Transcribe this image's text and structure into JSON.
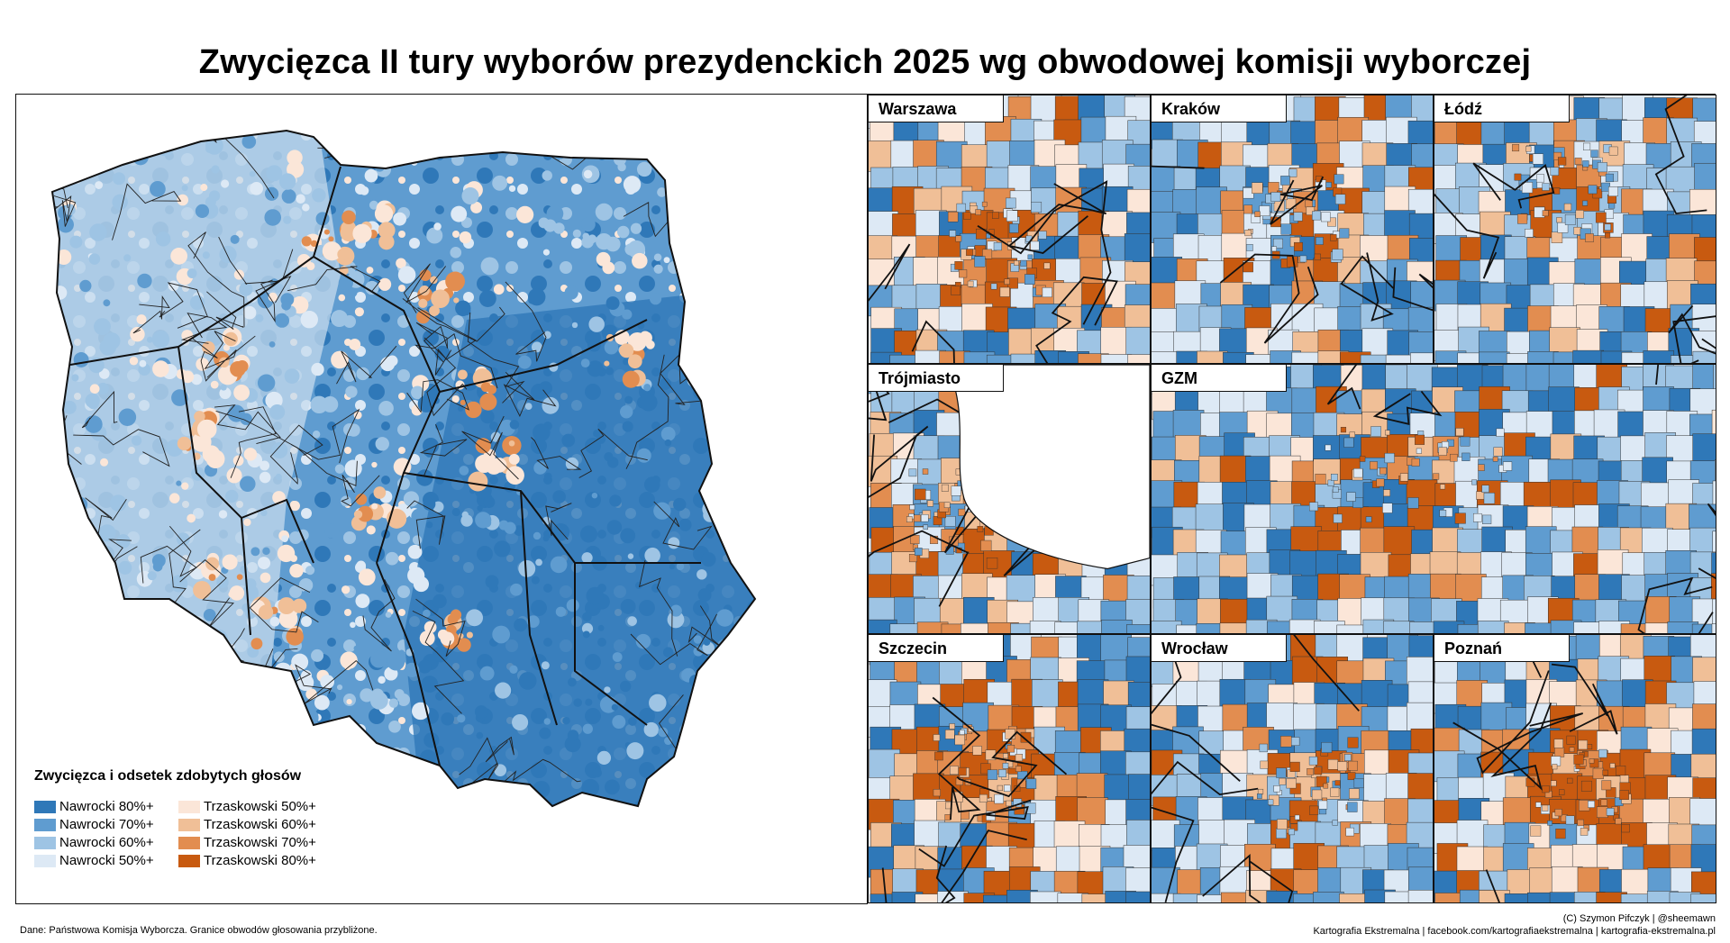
{
  "title": "Zwycięzca II tury wyborów prezydenckich 2025 wg obwodowej komisji wyborczej",
  "legend": {
    "title": "Zwycięzca i odsetek zdobytych głosów",
    "items": [
      {
        "label": "Nawrocki 80%+",
        "color": "#2f78b8"
      },
      {
        "label": "Trzaskowski 50%+",
        "color": "#fbe6d8"
      },
      {
        "label": "Nawrocki 70%+",
        "color": "#5f9cd0"
      },
      {
        "label": "Trzaskowski 60%+",
        "color": "#f0bf97"
      },
      {
        "label": "Nawrocki 60%+",
        "color": "#9ec4e4"
      },
      {
        "label": "Trzaskowski 70%+",
        "color": "#e28d50"
      },
      {
        "label": "Nawrocki 50%+",
        "color": "#dde9f5"
      },
      {
        "label": "Trzaskowski 80%+",
        "color": "#c85a10"
      }
    ]
  },
  "insets": [
    {
      "name": "Warszawa"
    },
    {
      "name": "Kraków"
    },
    {
      "name": "Łódź"
    },
    {
      "name": "Trójmiasto"
    },
    {
      "name": "GZM"
    },
    {
      "name": "Szczecin"
    },
    {
      "name": "Wrocław"
    },
    {
      "name": "Poznań"
    }
  ],
  "footer": {
    "source": "Dane: Państwowa Komisja Wyborcza. Granice obwodów głosowania przybliżone.",
    "credit": "(C) Szymon Pifczyk | @sheemawn",
    "links": "Kartografia Ekstremalna | facebook.com/kartografiaekstremalna | kartografia-ekstremalna.pl"
  },
  "colors": {
    "nawrocki": [
      "#dde9f5",
      "#9ec4e4",
      "#5f9cd0",
      "#2f78b8"
    ],
    "trzaskowski": [
      "#fbe6d8",
      "#f0bf97",
      "#e28d50",
      "#c85a10"
    ],
    "border": "#111111"
  }
}
